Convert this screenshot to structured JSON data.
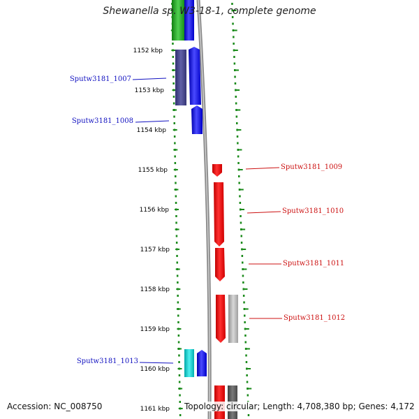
{
  "title": "Shewanella sp. W3-18-1, complete genome",
  "footer": {
    "accession": "Accession: NC_008750",
    "summary": "Topology: circular; Length: 4,708,380 bp; Genes: 4,172"
  },
  "ruler_unit": "kbp",
  "ruler": [
    {
      "pos": 1152,
      "label": "1152 kbp"
    },
    {
      "pos": 1153,
      "label": "1153 kbp"
    },
    {
      "pos": 1154,
      "label": "1154 kbp"
    },
    {
      "pos": 1155,
      "label": "1155 kbp"
    },
    {
      "pos": 1156,
      "label": "1156 kbp"
    },
    {
      "pos": 1157,
      "label": "1157 kbp"
    },
    {
      "pos": 1158,
      "label": "1158 kbp"
    },
    {
      "pos": 1159,
      "label": "1159 kbp"
    },
    {
      "pos": 1160,
      "label": "1160 kbp"
    },
    {
      "pos": 1161,
      "label": "1161 kbp"
    }
  ],
  "genes": [
    {
      "id": "Sputw3181_1007",
      "strand": "reverse",
      "label_side": "left",
      "color": "#2020e0"
    },
    {
      "id": "Sputw3181_1008",
      "strand": "reverse",
      "label_side": "left",
      "color": "#2020e0"
    },
    {
      "id": "Sputw3181_1009",
      "strand": "forward",
      "label_side": "right",
      "color": "#ee1010"
    },
    {
      "id": "Sputw3181_1010",
      "strand": "forward",
      "label_side": "right",
      "color": "#ee1010"
    },
    {
      "id": "Sputw3181_1011",
      "strand": "forward",
      "label_side": "right",
      "color": "#ee1010"
    },
    {
      "id": "Sputw3181_1012",
      "strand": "forward",
      "label_side": "right",
      "color": "#ee1010"
    },
    {
      "id": "Sputw3181_1013",
      "strand": "reverse",
      "label_side": "left",
      "color": "#2020e0"
    }
  ],
  "colors": {
    "reverse_cds": "#2020e0",
    "forward_cds": "#ee1010",
    "cog_navy": "#4a4a90",
    "cog_cyan": "#20d0d0",
    "cog_gray": "#b0b0b0",
    "cog_green": "#30b030",
    "backbone": "#909090",
    "ruler_dots": "#1a8a1a"
  }
}
